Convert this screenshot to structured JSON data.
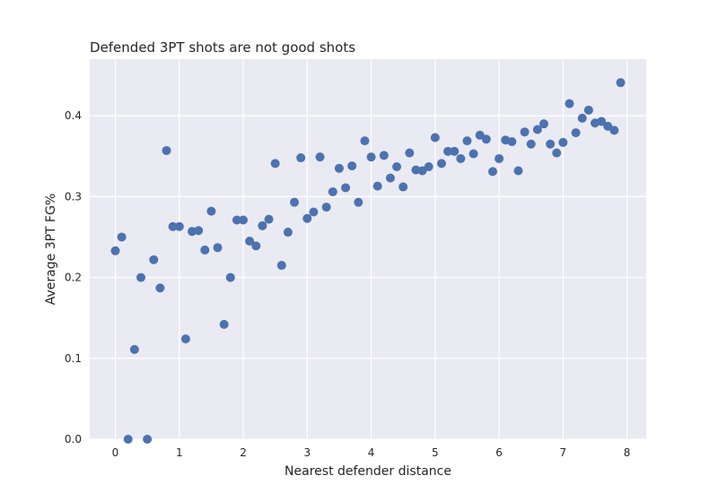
{
  "chart_data": {
    "type": "scatter",
    "title": "Defended 3PT shots are not good shots",
    "xlabel": "Nearest defender distance",
    "ylabel": "Average 3PT FG%",
    "xlim": [
      -0.4,
      8.3
    ],
    "ylim": [
      0.0,
      0.47
    ],
    "xticks": [
      0,
      1,
      2,
      3,
      4,
      5,
      6,
      7,
      8
    ],
    "yticks": [
      0.0,
      0.1,
      0.2,
      0.3,
      0.4
    ],
    "xtick_labels": [
      "0",
      "1",
      "2",
      "3",
      "4",
      "5",
      "6",
      "7",
      "8"
    ],
    "ytick_labels": [
      "0.0",
      "0.1",
      "0.2",
      "0.3",
      "0.4"
    ],
    "grid": true,
    "background": "#eaeaf2",
    "point_color": "#4c72b0",
    "points": [
      [
        0.0,
        0.233
      ],
      [
        0.1,
        0.25
      ],
      [
        0.2,
        0.0
      ],
      [
        0.3,
        0.111
      ],
      [
        0.4,
        0.2
      ],
      [
        0.5,
        0.0
      ],
      [
        0.6,
        0.222
      ],
      [
        0.7,
        0.187
      ],
      [
        0.8,
        0.357
      ],
      [
        0.9,
        0.263
      ],
      [
        1.0,
        0.263
      ],
      [
        1.1,
        0.124
      ],
      [
        1.2,
        0.257
      ],
      [
        1.3,
        0.258
      ],
      [
        1.4,
        0.234
      ],
      [
        1.5,
        0.282
      ],
      [
        1.6,
        0.237
      ],
      [
        1.7,
        0.142
      ],
      [
        1.8,
        0.2
      ],
      [
        1.9,
        0.271
      ],
      [
        2.0,
        0.271
      ],
      [
        2.1,
        0.245
      ],
      [
        2.2,
        0.239
      ],
      [
        2.3,
        0.264
      ],
      [
        2.4,
        0.272
      ],
      [
        2.5,
        0.341
      ],
      [
        2.6,
        0.215
      ],
      [
        2.7,
        0.256
      ],
      [
        2.8,
        0.293
      ],
      [
        2.9,
        0.348
      ],
      [
        3.0,
        0.273
      ],
      [
        3.1,
        0.281
      ],
      [
        3.2,
        0.349
      ],
      [
        3.3,
        0.287
      ],
      [
        3.4,
        0.306
      ],
      [
        3.5,
        0.335
      ],
      [
        3.6,
        0.311
      ],
      [
        3.7,
        0.338
      ],
      [
        3.8,
        0.293
      ],
      [
        3.9,
        0.369
      ],
      [
        4.0,
        0.349
      ],
      [
        4.1,
        0.313
      ],
      [
        4.2,
        0.351
      ],
      [
        4.3,
        0.323
      ],
      [
        4.4,
        0.337
      ],
      [
        4.5,
        0.312
      ],
      [
        4.6,
        0.354
      ],
      [
        4.7,
        0.333
      ],
      [
        4.8,
        0.332
      ],
      [
        4.9,
        0.337
      ],
      [
        5.0,
        0.373
      ],
      [
        5.1,
        0.341
      ],
      [
        5.2,
        0.356
      ],
      [
        5.3,
        0.356
      ],
      [
        5.4,
        0.347
      ],
      [
        5.5,
        0.369
      ],
      [
        5.6,
        0.353
      ],
      [
        5.7,
        0.376
      ],
      [
        5.8,
        0.371
      ],
      [
        5.9,
        0.331
      ],
      [
        6.0,
        0.347
      ],
      [
        6.1,
        0.37
      ],
      [
        6.2,
        0.368
      ],
      [
        6.3,
        0.332
      ],
      [
        6.4,
        0.38
      ],
      [
        6.5,
        0.365
      ],
      [
        6.6,
        0.383
      ],
      [
        6.7,
        0.39
      ],
      [
        6.8,
        0.365
      ],
      [
        6.9,
        0.354
      ],
      [
        7.0,
        0.367
      ],
      [
        7.1,
        0.415
      ],
      [
        7.2,
        0.379
      ],
      [
        7.3,
        0.397
      ],
      [
        7.4,
        0.407
      ],
      [
        7.5,
        0.391
      ],
      [
        7.6,
        0.393
      ],
      [
        7.7,
        0.387
      ],
      [
        7.8,
        0.382
      ],
      [
        7.9,
        0.441
      ]
    ]
  }
}
